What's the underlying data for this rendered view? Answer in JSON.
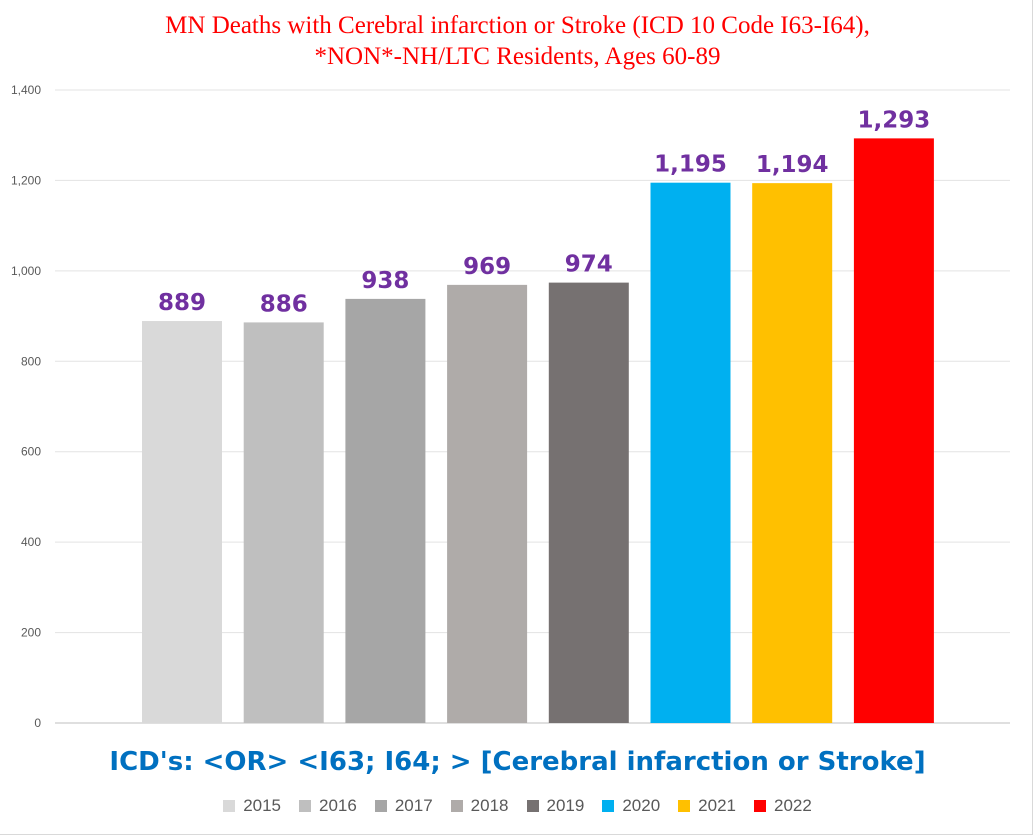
{
  "chart_data": {
    "type": "bar",
    "title": "MN Deaths with Cerebral infarction or Stroke (ICD 10 Code I63-I64),",
    "subtitle": "*NON*-NH/LTC Residents, Ages 60-89",
    "xlabel": "ICD's: <OR>  <I63; I64; > [Cerebral infarction or Stroke]",
    "ylabel": "",
    "ylim": [
      0,
      1400
    ],
    "y_ticks": [
      0,
      200,
      400,
      600,
      800,
      1000,
      1200,
      1400
    ],
    "y_tick_labels": [
      "0",
      "200",
      "400",
      "600",
      "800",
      "1,000",
      "1,200",
      "1,400"
    ],
    "grid": true,
    "legend_position": "bottom",
    "categories": [
      "2015",
      "2016",
      "2017",
      "2018",
      "2019",
      "2020",
      "2021",
      "2022"
    ],
    "values": [
      889,
      886,
      938,
      969,
      974,
      1195,
      1194,
      1293
    ],
    "data_labels": [
      "889",
      "886",
      "938",
      "969",
      "974",
      "1,195",
      "1,194",
      "1,293"
    ],
    "colors": [
      "#d9d9d9",
      "#bfbfbf",
      "#a6a6a6",
      "#afaba9",
      "#767171",
      "#00b0f0",
      "#ffc000",
      "#ff0000"
    ],
    "data_label_color": "#7030a0",
    "title_color": "#ff0000",
    "xlabel_color": "#0070c0"
  }
}
